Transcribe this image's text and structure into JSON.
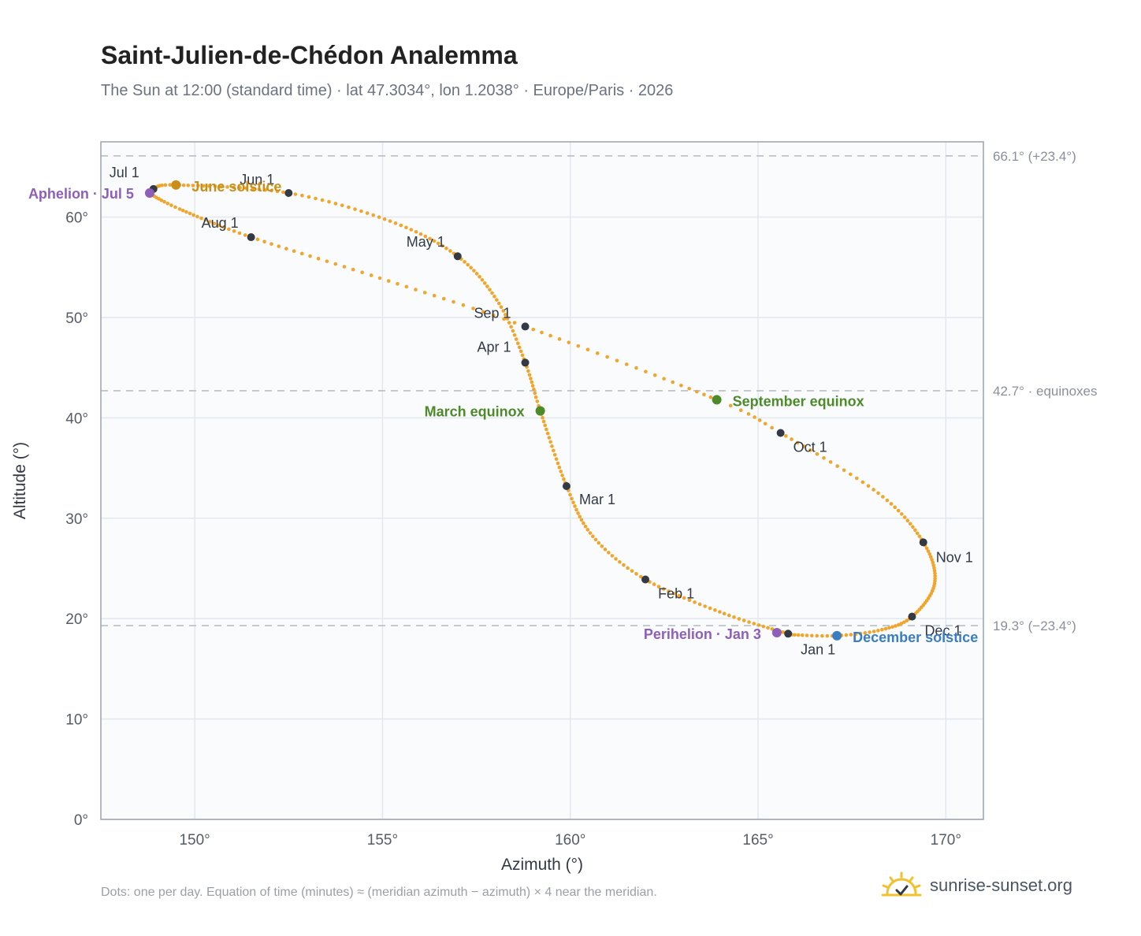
{
  "title": "Saint-Julien-de-Chédon Analemma",
  "subtitle": "The Sun at 12:00 (standard time) · lat 47.3034°, lon 1.2038° · Europe/Paris · 2026",
  "footnote": "Dots: one per day. Equation of time (minutes) ≈ (meridian azimuth − azimuth) × 4 near the meridian.",
  "brand": "sunrise-sunset.org",
  "colors": {
    "path": "#f2a52b",
    "month_dot": "#333a44",
    "equinox": "#4e8a2a",
    "solstice_june": "#c8901a",
    "solstice_december": "#3b7dc4",
    "apsis": "#8e5fb8",
    "plot_bg": "#f9fbfd",
    "grid": "#e3e8ee",
    "reference_line": "#b7bec7",
    "brand_icon": "#f2c12e"
  },
  "chart_data": {
    "type": "scatter",
    "title": "Saint-Julien-de-Chédon Analemma",
    "xlabel": "Azimuth (°)",
    "ylabel": "Altitude (°)",
    "xlim": [
      147.5,
      171
    ],
    "ylim": [
      0,
      67.5
    ],
    "x_ticks": [
      150,
      155,
      160,
      165,
      170
    ],
    "x_tick_labels": [
      "150°",
      "155°",
      "160°",
      "165°",
      "170°"
    ],
    "y_ticks": [
      0,
      10,
      20,
      30,
      40,
      50,
      60
    ],
    "y_tick_labels": [
      "0°",
      "10°",
      "20°",
      "30°",
      "40°",
      "50°",
      "60°"
    ],
    "grid": true,
    "reference_lines": [
      {
        "altitude": 66.1,
        "label": "66.1° (+23.4°)"
      },
      {
        "altitude": 42.7,
        "label": "42.7° · equinoxes"
      },
      {
        "altitude": 19.3,
        "label": "19.3° (−23.4°)"
      }
    ],
    "month_markers": [
      {
        "label": "Jan 1",
        "azimuth": 165.8,
        "altitude": 18.5
      },
      {
        "label": "Feb 1",
        "azimuth": 162.0,
        "altitude": 23.9
      },
      {
        "label": "Mar 1",
        "azimuth": 159.9,
        "altitude": 33.2
      },
      {
        "label": "Apr 1",
        "azimuth": 158.8,
        "altitude": 45.5
      },
      {
        "label": "May 1",
        "azimuth": 157.0,
        "altitude": 56.1
      },
      {
        "label": "Jun 1",
        "azimuth": 152.5,
        "altitude": 62.4
      },
      {
        "label": "Jul 1",
        "azimuth": 148.9,
        "altitude": 62.8
      },
      {
        "label": "Aug 1",
        "azimuth": 151.5,
        "altitude": 58.0
      },
      {
        "label": "Sep 1",
        "azimuth": 158.8,
        "altitude": 49.1
      },
      {
        "label": "Oct 1",
        "azimuth": 165.6,
        "altitude": 38.5
      },
      {
        "label": "Nov 1",
        "azimuth": 169.4,
        "altitude": 27.6
      },
      {
        "label": "Dec 1",
        "azimuth": 169.1,
        "altitude": 20.2
      }
    ],
    "events": [
      {
        "label": "March equinox",
        "azimuth": 159.2,
        "altitude": 40.7,
        "kind": "equinox"
      },
      {
        "label": "June solstice",
        "azimuth": 149.5,
        "altitude": 63.2,
        "kind": "solstice_june"
      },
      {
        "label": "September equinox",
        "azimuth": 163.9,
        "altitude": 41.8,
        "kind": "equinox"
      },
      {
        "label": "December solstice",
        "azimuth": 167.1,
        "altitude": 18.3,
        "kind": "solstice_december"
      },
      {
        "label": "Aphelion · Jul 5",
        "azimuth": 148.8,
        "altitude": 62.4,
        "kind": "apsis"
      },
      {
        "label": "Perihelion · Jan 3",
        "azimuth": 165.5,
        "altitude": 18.6,
        "kind": "apsis"
      }
    ],
    "path_anchors": [
      {
        "day": 1,
        "azimuth": 165.8,
        "altitude": 18.5
      },
      {
        "day": 16,
        "azimuth": 164.1,
        "altitude": 20.5
      },
      {
        "day": 32,
        "azimuth": 162.0,
        "altitude": 23.9
      },
      {
        "day": 46,
        "azimuth": 160.6,
        "altitude": 28.2
      },
      {
        "day": 60,
        "azimuth": 159.9,
        "altitude": 33.2
      },
      {
        "day": 79,
        "azimuth": 159.2,
        "altitude": 40.7
      },
      {
        "day": 91,
        "azimuth": 158.8,
        "altitude": 45.5
      },
      {
        "day": 106,
        "azimuth": 158.1,
        "altitude": 51.4
      },
      {
        "day": 121,
        "azimuth": 157.0,
        "altitude": 56.1
      },
      {
        "day": 136,
        "azimuth": 155.2,
        "altitude": 59.6
      },
      {
        "day": 152,
        "azimuth": 152.5,
        "altitude": 62.4
      },
      {
        "day": 172,
        "azimuth": 149.5,
        "altitude": 63.2
      },
      {
        "day": 182,
        "azimuth": 148.9,
        "altitude": 62.8
      },
      {
        "day": 186,
        "azimuth": 148.8,
        "altitude": 62.4
      },
      {
        "day": 197,
        "azimuth": 149.6,
        "altitude": 60.8
      },
      {
        "day": 213,
        "azimuth": 151.5,
        "altitude": 58.0
      },
      {
        "day": 228,
        "azimuth": 154.7,
        "altitude": 54.2
      },
      {
        "day": 244,
        "azimuth": 158.8,
        "altitude": 49.1
      },
      {
        "day": 266,
        "azimuth": 163.9,
        "altitude": 41.8
      },
      {
        "day": 274,
        "azimuth": 165.6,
        "altitude": 38.5
      },
      {
        "day": 290,
        "azimuth": 168.2,
        "altitude": 32.5
      },
      {
        "day": 305,
        "azimuth": 169.4,
        "altitude": 27.6
      },
      {
        "day": 320,
        "azimuth": 169.7,
        "altitude": 23.5
      },
      {
        "day": 335,
        "azimuth": 169.1,
        "altitude": 20.2
      },
      {
        "day": 345,
        "azimuth": 168.3,
        "altitude": 18.9
      },
      {
        "day": 355,
        "azimuth": 167.1,
        "altitude": 18.3
      },
      {
        "day": 365,
        "azimuth": 165.9,
        "altitude": 18.4
      },
      {
        "day": 366,
        "azimuth": 165.8,
        "altitude": 18.5
      }
    ]
  }
}
